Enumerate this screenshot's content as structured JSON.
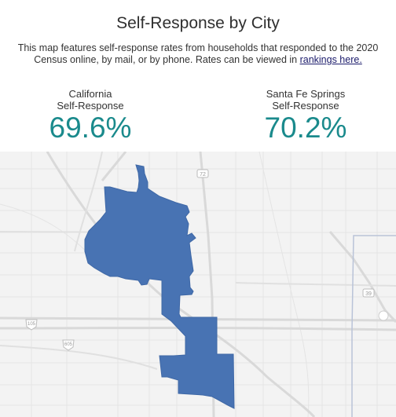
{
  "header": {
    "title": "Self-Response by City",
    "description_prefix": "This map features self-response rates from households that responded to the 2020 Census online, by mail, or by phone. Rates can be viewed in ",
    "description_link": "rankings here."
  },
  "stats": {
    "left": {
      "label_line1": "California",
      "label_line2": "Self-Response",
      "value": "69.6%"
    },
    "right": {
      "label_line1": "Santa Fe Springs",
      "label_line2": "Self-Response",
      "value": "70.2%"
    }
  },
  "map": {
    "highlight_color": "#4873b3",
    "road_markers": [
      "72",
      "39",
      "105",
      "605"
    ]
  },
  "colors": {
    "accent": "#1a8a8c",
    "link": "#1b1b6b"
  }
}
